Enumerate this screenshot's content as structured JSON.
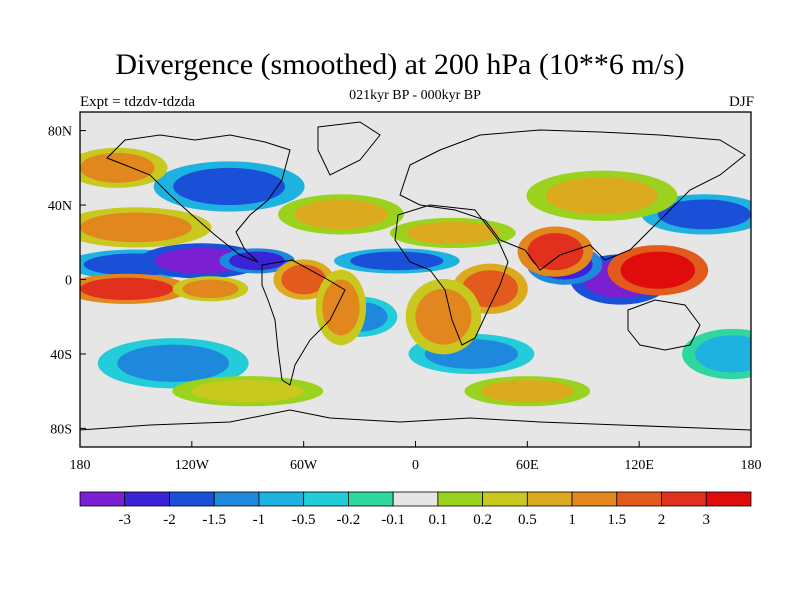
{
  "chart_data": {
    "type": "heatmap",
    "title": "Divergence (smoothed) at 200 hPa (10**6 m/s)",
    "subtitle": "021kyr BP - 000kyr BP",
    "left_label": "Expt = tdzdv-tdzda",
    "right_label": "DJF",
    "x_ticks": [
      "180",
      "120W",
      "60W",
      "0",
      "60E",
      "120E",
      "180"
    ],
    "y_ticks": [
      "80N",
      "40N",
      "0",
      "40S",
      "80S"
    ],
    "xlim": [
      -180,
      180
    ],
    "ylim": [
      -90,
      90
    ],
    "colorbar": {
      "labels": [
        "-3",
        "-2",
        "-1.5",
        "-1",
        "-0.5",
        "-0.2",
        "-0.1",
        "0.1",
        "0.2",
        "0.5",
        "1",
        "1.5",
        "2",
        "3"
      ],
      "colors": [
        "#7a1fd2",
        "#3a24d6",
        "#1a4fd8",
        "#1e88dc",
        "#1eb2e0",
        "#22ccd8",
        "#2fd6a0",
        "#e6e6e6",
        "#9bd21e",
        "#c8c81e",
        "#dcaa1e",
        "#e2861e",
        "#e25a1e",
        "#e2301e",
        "#e00c0c"
      ]
    },
    "blobs": [
      {
        "lon": -150,
        "lat": 8,
        "rlon": 28,
        "rlat": 6,
        "level": 2
      },
      {
        "lon": -115,
        "lat": 10,
        "rlon": 25,
        "rlat": 7,
        "level": 0
      },
      {
        "lon": -85,
        "lat": 10,
        "rlon": 15,
        "rlat": 5,
        "level": 1
      },
      {
        "lon": -100,
        "lat": 50,
        "rlon": 30,
        "rlat": 10,
        "level": 2
      },
      {
        "lon": 110,
        "lat": 0,
        "rlon": 20,
        "rlat": 10,
        "level": 0
      },
      {
        "lon": 80,
        "lat": 8,
        "rlon": 15,
        "rlat": 8,
        "level": 1
      },
      {
        "lon": 155,
        "lat": 35,
        "rlon": 25,
        "rlat": 8,
        "level": 2
      },
      {
        "lon": -10,
        "lat": 10,
        "rlon": 25,
        "rlat": 5,
        "level": 2
      },
      {
        "lon": -30,
        "lat": -20,
        "rlon": 15,
        "rlat": 8,
        "level": 3
      },
      {
        "lon": -130,
        "lat": -45,
        "rlon": 30,
        "rlat": 10,
        "level": 3
      },
      {
        "lon": 170,
        "lat": -40,
        "rlon": 20,
        "rlat": 10,
        "level": 4
      },
      {
        "lon": 30,
        "lat": -40,
        "rlon": 25,
        "rlat": 8,
        "level": 3
      },
      {
        "lon": -155,
        "lat": -5,
        "rlon": 25,
        "rlat": 6,
        "level": 13
      },
      {
        "lon": -110,
        "lat": -5,
        "rlon": 15,
        "rlat": 5,
        "level": 11
      },
      {
        "lon": -60,
        "lat": 0,
        "rlon": 12,
        "rlat": 8,
        "level": 12
      },
      {
        "lon": 130,
        "lat": 5,
        "rlon": 20,
        "rlat": 10,
        "level": 14
      },
      {
        "lon": 75,
        "lat": 15,
        "rlon": 15,
        "rlat": 10,
        "level": 13
      },
      {
        "lon": 40,
        "lat": -5,
        "rlon": 15,
        "rlat": 10,
        "level": 12
      },
      {
        "lon": 15,
        "lat": -20,
        "rlon": 15,
        "rlat": 15,
        "level": 11
      },
      {
        "lon": -40,
        "lat": -15,
        "rlon": 10,
        "rlat": 15,
        "level": 11
      },
      {
        "lon": -150,
        "lat": 28,
        "rlon": 30,
        "rlat": 8,
        "level": 11
      },
      {
        "lon": -40,
        "lat": 35,
        "rlon": 25,
        "rlat": 8,
        "level": 10
      },
      {
        "lon": 100,
        "lat": 45,
        "rlon": 30,
        "rlat": 10,
        "level": 10
      },
      {
        "lon": -160,
        "lat": 60,
        "rlon": 20,
        "rlat": 8,
        "level": 11
      },
      {
        "lon": 20,
        "lat": 25,
        "rlon": 25,
        "rlat": 6,
        "level": 10
      },
      {
        "lon": -90,
        "lat": -60,
        "rlon": 30,
        "rlat": 6,
        "level": 9
      },
      {
        "lon": 60,
        "lat": -60,
        "rlon": 25,
        "rlat": 6,
        "level": 10
      }
    ]
  }
}
